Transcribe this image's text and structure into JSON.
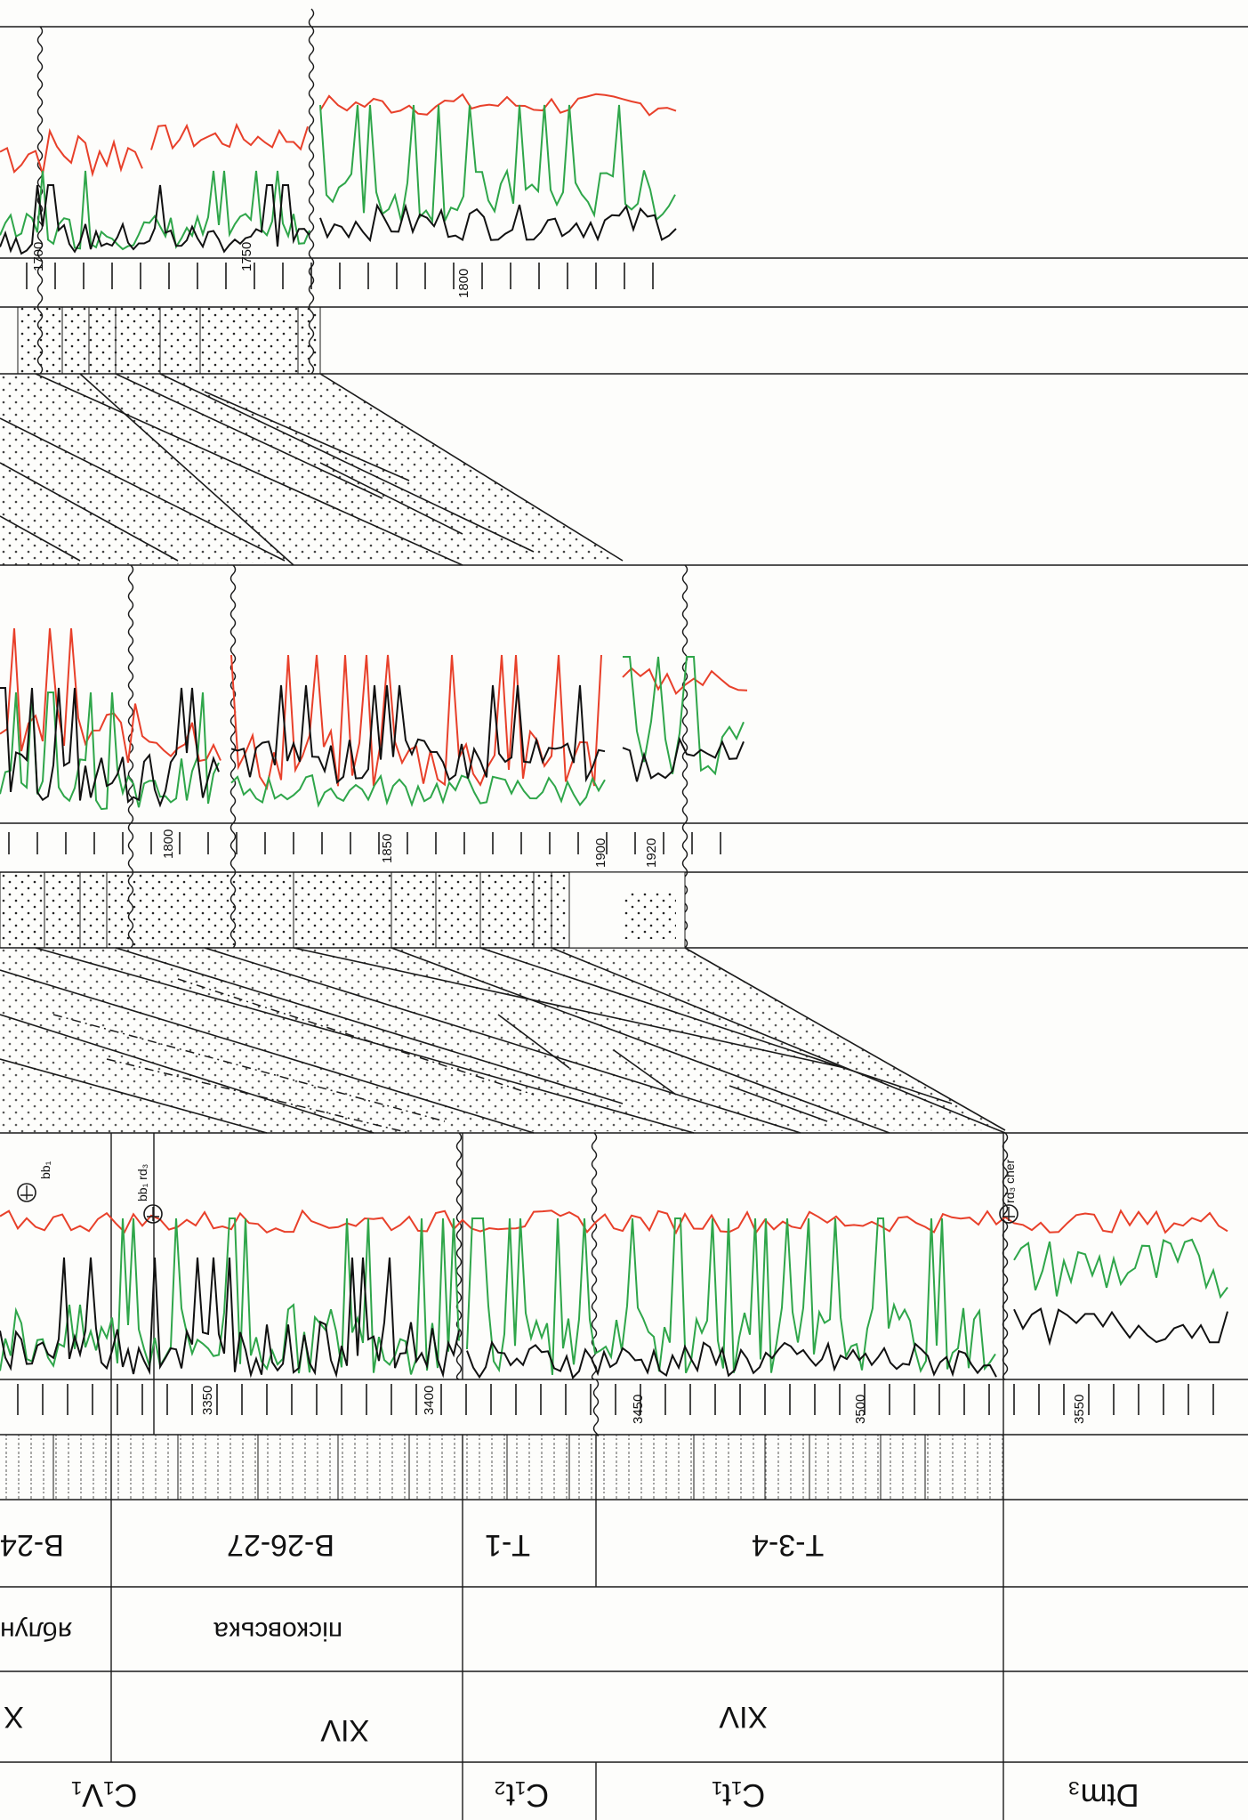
{
  "strat_units": [
    {
      "id": "c1v1",
      "text": "C₁V₁"
    },
    {
      "id": "c1t2",
      "text": "C₁t₂"
    },
    {
      "id": "c1t1",
      "text": "C₁t₁"
    },
    {
      "id": "dtm3",
      "text": "Dtm₃"
    }
  ],
  "cycle_labels": [
    "X",
    "XIV",
    "XIV"
  ],
  "horizons": [
    {
      "id": "yablun",
      "text": "яблун"
    },
    {
      "id": "piskovska",
      "text": "пісковська"
    }
  ],
  "layer_labels": [
    {
      "id": "b24",
      "text": "В-24"
    },
    {
      "id": "b2627",
      "text": "В-26-27"
    },
    {
      "id": "t1",
      "text": "Т-1"
    },
    {
      "id": "t34",
      "text": "Т-3-4"
    }
  ],
  "depth_labels": {
    "well1": [
      "3350",
      "3400",
      "3450",
      "3500",
      "3550"
    ],
    "well2": [
      "1800",
      "1850",
      "1900",
      "1920"
    ],
    "well3": [
      "1700",
      "1750",
      "1800"
    ]
  },
  "markers": [
    {
      "id": "bb1-top",
      "text": "bb₁"
    },
    {
      "id": "bb1-rd3",
      "text": "bb₁ rd₃"
    },
    {
      "id": "rd3-cher",
      "text": "rd₃ cher"
    }
  ],
  "colors": {
    "red_curve": "#e8402a",
    "green_curve": "#2fa64a",
    "black_curve": "#111111",
    "grid": "#1a1a1a"
  }
}
